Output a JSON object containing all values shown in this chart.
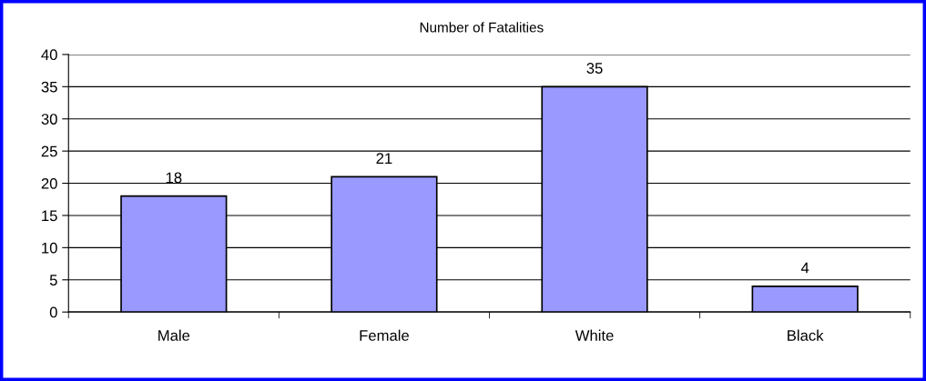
{
  "chart_data": {
    "type": "bar",
    "title": "Number of Fatalities",
    "categories": [
      "Male",
      "Female",
      "White",
      "Black"
    ],
    "values": [
      18,
      21,
      35,
      4
    ],
    "color": "#9999ff",
    "ylim": [
      0,
      40
    ],
    "yticks": [
      0,
      5,
      10,
      15,
      20,
      25,
      30,
      35,
      40
    ],
    "grid": "y",
    "data_labels": true,
    "legend": false
  }
}
